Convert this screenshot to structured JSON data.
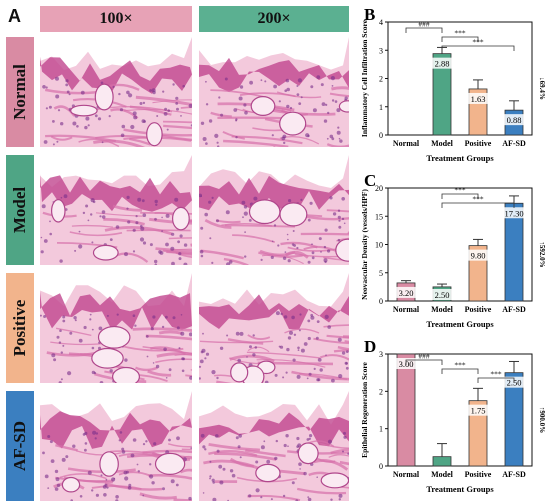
{
  "panel_a": {
    "letter": "A",
    "magnifications": [
      "100×",
      "200×"
    ],
    "mag_colors": [
      "#e7a2b6",
      "#5bb091"
    ],
    "groups": [
      {
        "name": "Normal",
        "color": "#d98ba3"
      },
      {
        "name": "Model",
        "color": "#4fa585"
      },
      {
        "name": "Positive",
        "color": "#f2b48c"
      },
      {
        "name": "AF-SD",
        "color": "#3b7fc0"
      }
    ]
  },
  "chart_data": [
    {
      "panel": "B",
      "type": "bar",
      "categories": [
        "Normal",
        "Model",
        "Positive",
        "AF-SD"
      ],
      "values": [
        0,
        2.88,
        1.63,
        0.88
      ],
      "value_labels": [
        "",
        "2.88",
        "1.63",
        "0.88"
      ],
      "errors": [
        0,
        0.22,
        0.32,
        0.33
      ],
      "colors": [
        "#d98ba3",
        "#4fa585",
        "#f2b48c",
        "#3b7fc0"
      ],
      "xlabel": "Treatment Groups",
      "ylabel": "Inflammatory Cell Infiltration Score",
      "ylim": [
        0,
        4
      ],
      "yticks": [
        0,
        1,
        2,
        3,
        4
      ],
      "annotation": "↓69.4%",
      "significance": [
        {
          "from": 0,
          "to": 1,
          "label": "###"
        },
        {
          "from": 1,
          "to": 2,
          "label": "***"
        },
        {
          "from": 1,
          "to": 3,
          "label": "***"
        }
      ]
    },
    {
      "panel": "C",
      "type": "bar",
      "categories": [
        "Normal",
        "Model",
        "Positive",
        "AF-SD"
      ],
      "values": [
        3.2,
        2.5,
        9.8,
        17.3
      ],
      "value_labels": [
        "3.20",
        "2.50",
        "9.80",
        "17.30"
      ],
      "errors": [
        0.4,
        0.5,
        1.1,
        1.3
      ],
      "colors": [
        "#d98ba3",
        "#4fa585",
        "#f2b48c",
        "#3b7fc0"
      ],
      "xlabel": "Treatment Groups",
      "ylabel": "Neovascular Density (vessels/HPF)",
      "ylim": [
        0,
        20
      ],
      "yticks": [
        0,
        5,
        10,
        15,
        20
      ],
      "annotation": "↑592.0%",
      "significance": [
        {
          "from": 1,
          "to": 2,
          "label": "***"
        },
        {
          "from": 1,
          "to": 3,
          "label": "***"
        }
      ]
    },
    {
      "panel": "D",
      "type": "bar",
      "categories": [
        "Normal",
        "Model",
        "Positive",
        "AF-SD"
      ],
      "values": [
        3.0,
        0.25,
        1.75,
        2.5
      ],
      "value_labels": [
        "3.00",
        "",
        "1.75",
        "2.50"
      ],
      "errors": [
        0,
        0.35,
        0.33,
        0.3
      ],
      "colors": [
        "#d98ba3",
        "#4fa585",
        "#f2b48c",
        "#3b7fc0"
      ],
      "xlabel": "Treatment Groups",
      "ylabel": "Epithelial Regeneration Score",
      "ylim": [
        0,
        3
      ],
      "yticks": [
        0,
        1,
        2,
        3
      ],
      "annotation": "↑900.0%",
      "significance": [
        {
          "from": 0,
          "to": 1,
          "label": "###"
        },
        {
          "from": 1,
          "to": 2,
          "label": "***"
        },
        {
          "from": 2,
          "to": 3,
          "label": "***"
        }
      ]
    }
  ]
}
